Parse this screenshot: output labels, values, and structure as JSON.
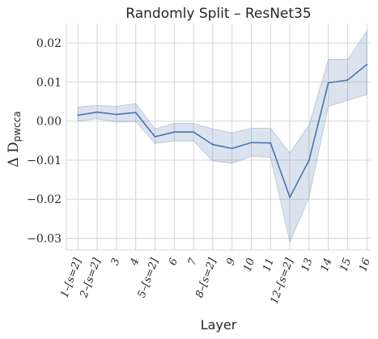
{
  "chart_data": {
    "type": "line",
    "title": "Randomly Split – ResNet35",
    "xlabel": "Layer",
    "ylabel_main": "Δ D",
    "ylabel_sub": "pwcca",
    "categories": [
      "1–[s=2]",
      "2–[s=2]",
      "3",
      "4",
      "5–[s=2]",
      "6",
      "7",
      "8–[s=2]",
      "9",
      "10",
      "11",
      "12–[s=2]",
      "13",
      "14",
      "15",
      "16"
    ],
    "ylim": [
      -0.033,
      0.025
    ],
    "yticks": [
      0.02,
      0.01,
      0.0,
      -0.01,
      -0.02,
      -0.03
    ],
    "ytick_labels": [
      "0.02",
      "0.01",
      "0.00",
      "−0.01",
      "−0.02",
      "−0.03"
    ],
    "grid": true,
    "series": [
      {
        "values": [
          0.0015,
          0.0023,
          0.0017,
          0.0022,
          -0.004,
          -0.0028,
          -0.0028,
          -0.006,
          -0.007,
          -0.0055,
          -0.0056,
          -0.0195,
          -0.01,
          0.0098,
          0.0105,
          0.0145
        ],
        "lower": [
          0.0,
          0.0006,
          -0.0003,
          -0.0001,
          -0.0057,
          -0.0051,
          -0.0051,
          -0.0102,
          -0.0108,
          -0.009,
          -0.0093,
          -0.031,
          -0.0195,
          0.0038,
          0.0053,
          0.0068
        ],
        "upper": [
          0.0036,
          0.004,
          0.0038,
          0.0045,
          -0.002,
          -0.0006,
          -0.0006,
          -0.002,
          -0.003,
          -0.0018,
          -0.0018,
          -0.0082,
          -0.001,
          0.0158,
          0.0158,
          0.023
        ],
        "color": "#4c72b0",
        "band_color": "#4c72b0"
      }
    ]
  }
}
